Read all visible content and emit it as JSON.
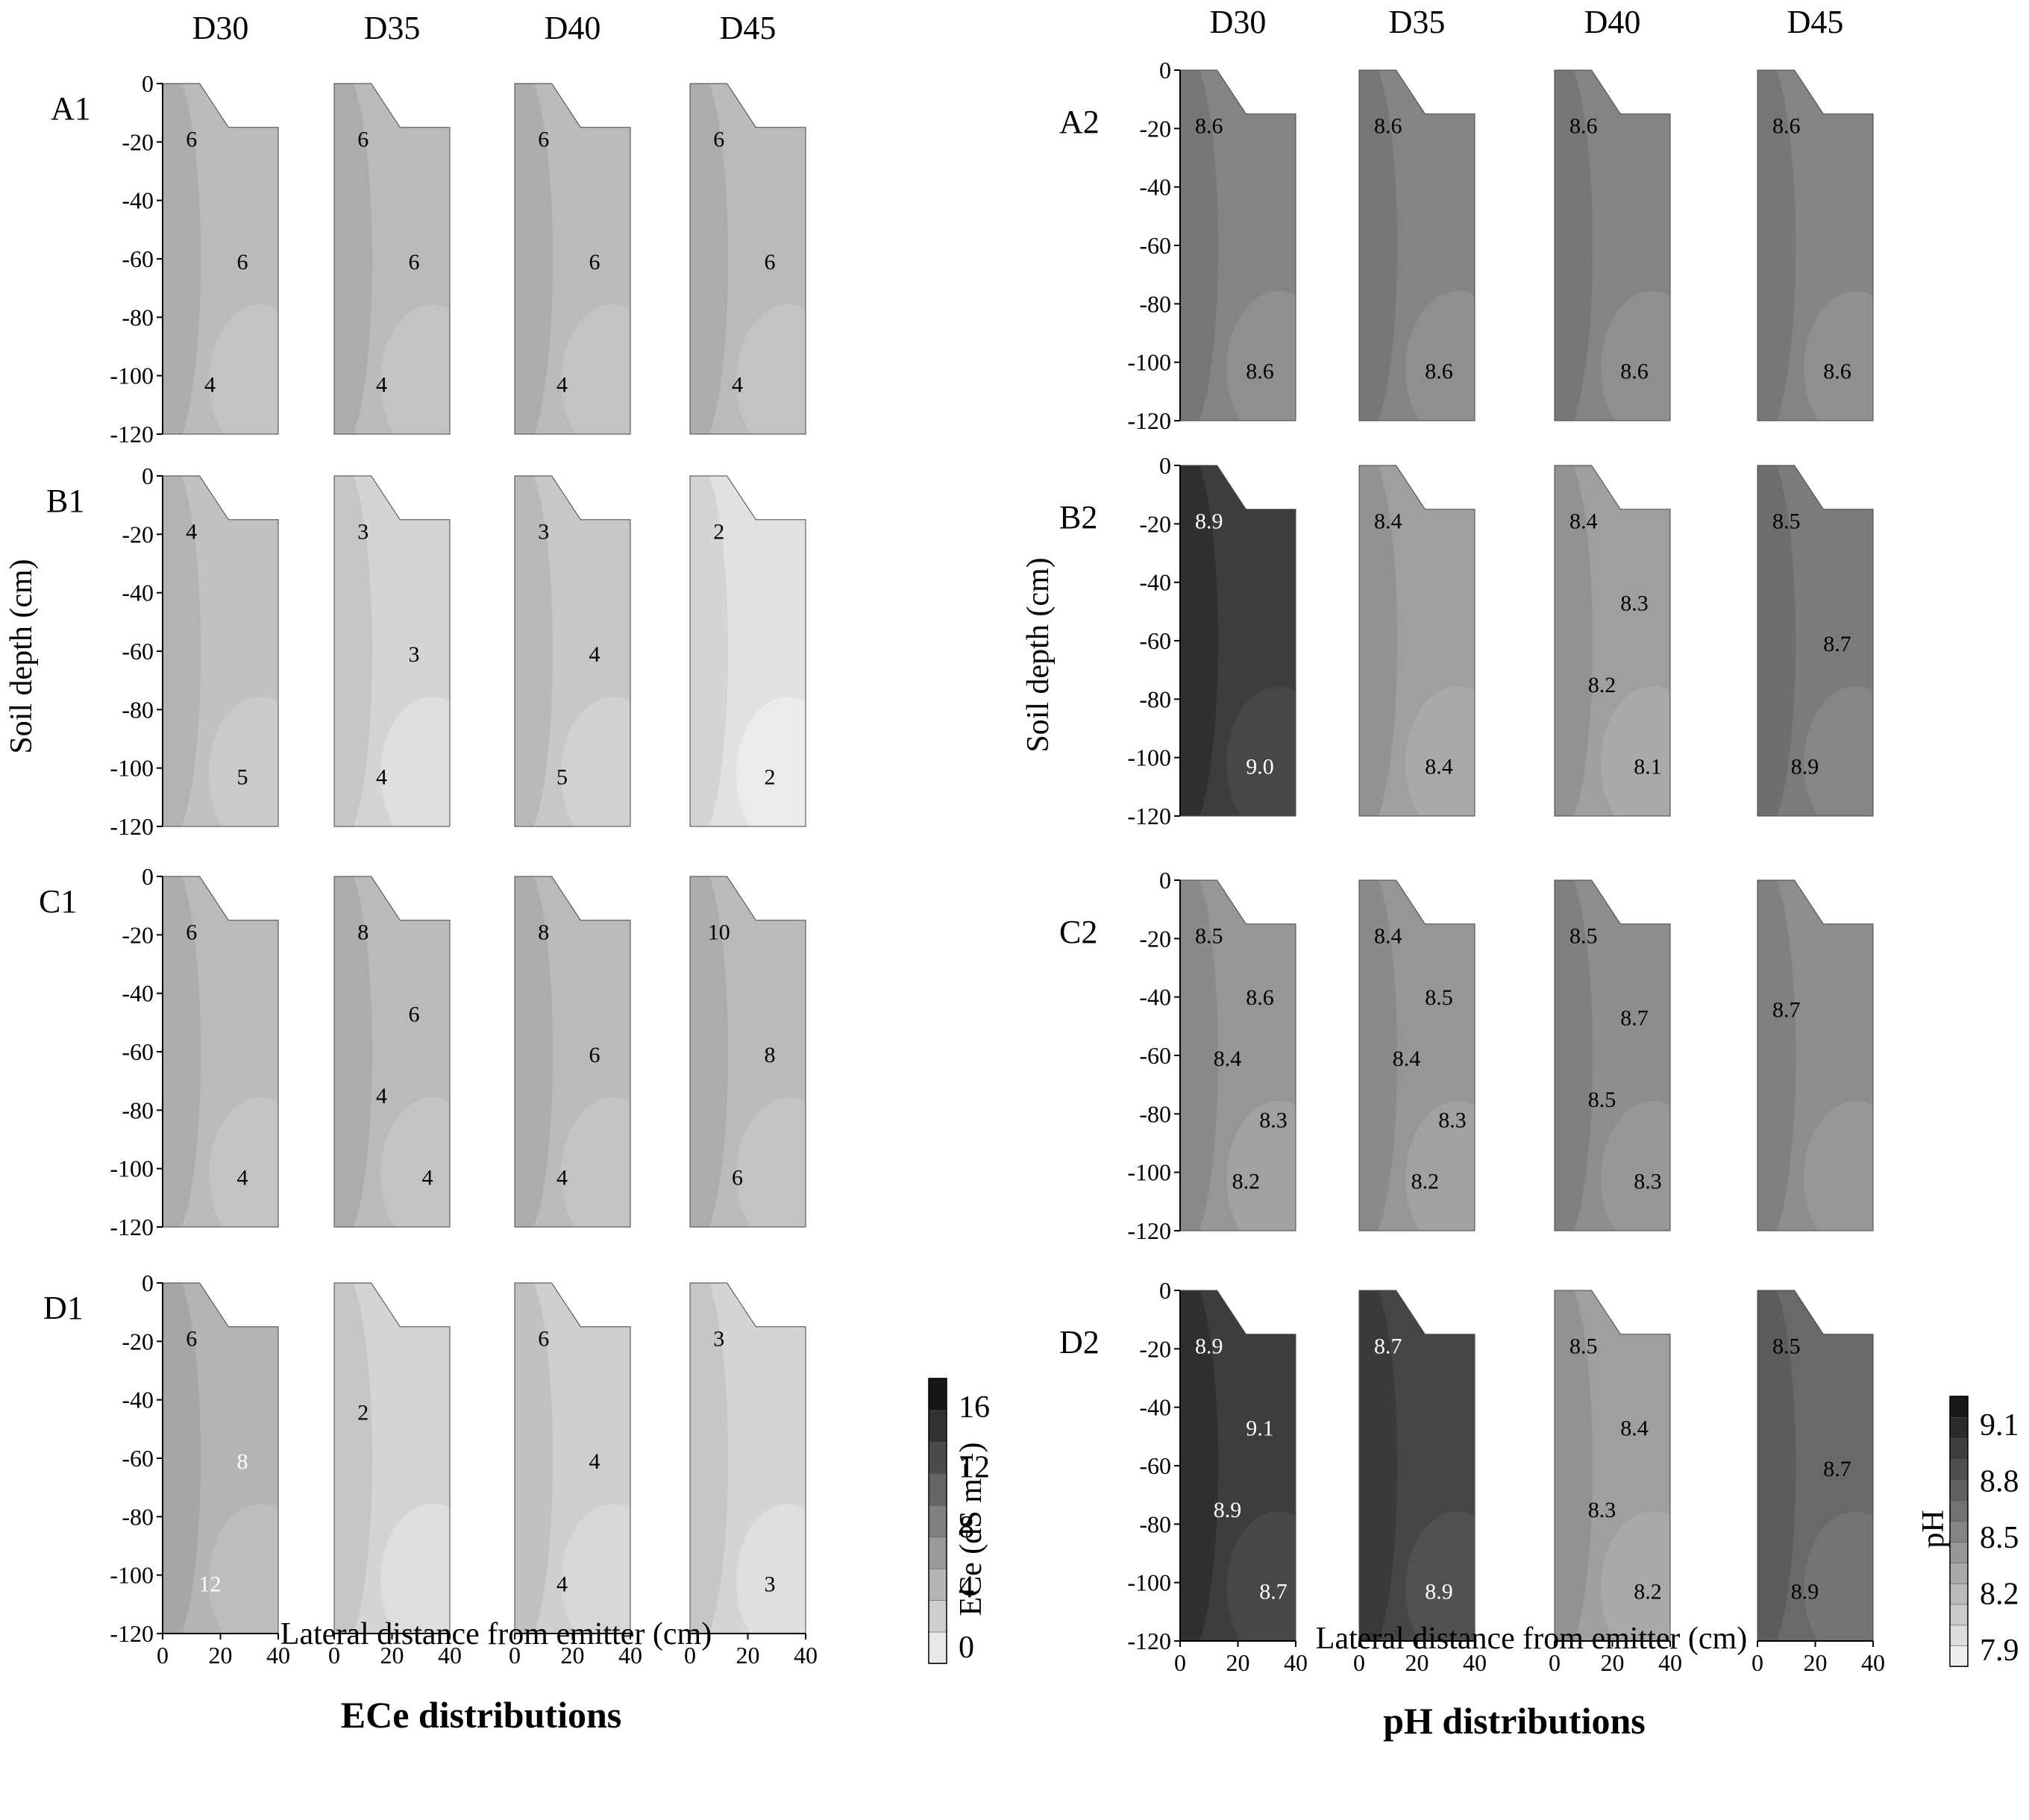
{
  "chart_data": [
    {
      "type": "contour",
      "title": "ECe distributions",
      "xlabel": "Lateral distance from emitter (cm)",
      "ylabel": "Soil depth (cm)",
      "xlim": [
        0,
        40
      ],
      "ylim": [
        -120,
        0
      ],
      "x_ticks": [
        "0",
        "20",
        "40"
      ],
      "y_ticks": [
        "0",
        "-20",
        "-40",
        "-60",
        "-80",
        "-100",
        "-120"
      ],
      "columns": [
        "D30",
        "D35",
        "D40",
        "D45"
      ],
      "rows": [
        "A1",
        "B1",
        "C1",
        "D1"
      ],
      "colorbar": {
        "label": "ECe (dS m⁻¹)",
        "ticks": [
          "16",
          "12",
          "8",
          "4",
          "0"
        ],
        "levels": [
          0,
          2,
          4,
          6,
          8,
          10,
          12,
          14,
          16,
          18
        ]
      },
      "panels": [
        [
          {
            "bg": 4.5,
            "contour_labels": [
              "6",
              "6",
              "4"
            ]
          },
          {
            "bg": 4.5,
            "contour_labels": [
              "6",
              "6",
              "4"
            ]
          },
          {
            "bg": 4.5,
            "contour_labels": [
              "6",
              "6",
              "4"
            ]
          },
          {
            "bg": 4.5,
            "contour_labels": [
              "6",
              "6",
              "4"
            ]
          }
        ],
        [
          {
            "bg": 4.0,
            "contour_labels": [
              "4",
              "5"
            ]
          },
          {
            "bg": 2.5,
            "contour_labels": [
              "3",
              "3",
              "4"
            ]
          },
          {
            "bg": 3.5,
            "contour_labels": [
              "3",
              "4",
              "5"
            ]
          },
          {
            "bg": 1.5,
            "contour_labels": [
              "2",
              "2"
            ]
          }
        ],
        [
          {
            "bg": 4.5,
            "contour_labels": [
              "6",
              "4"
            ]
          },
          {
            "bg": 4.5,
            "contour_labels": [
              "8",
              "6",
              "4",
              "4"
            ]
          },
          {
            "bg": 4.5,
            "contour_labels": [
              "8",
              "6",
              "4"
            ]
          },
          {
            "bg": 4.5,
            "contour_labels": [
              "10",
              "8",
              "6"
            ]
          }
        ],
        [
          {
            "bg": 5.0,
            "contour_labels": [
              "6",
              "8",
              "12"
            ]
          },
          {
            "bg": 2.5,
            "contour_labels": [
              "2"
            ]
          },
          {
            "bg": 3.0,
            "contour_labels": [
              "6",
              "4",
              "4"
            ]
          },
          {
            "bg": 2.5,
            "contour_labels": [
              "3",
              "3"
            ]
          }
        ]
      ]
    },
    {
      "type": "contour",
      "title": "pH distributions",
      "xlabel": "Lateral distance from emitter (cm)",
      "ylabel": "Soil depth (cm)",
      "xlim": [
        0,
        40
      ],
      "ylim": [
        -120,
        0
      ],
      "x_ticks": [
        "0",
        "20",
        "40"
      ],
      "y_ticks": [
        "0",
        "-20",
        "-40",
        "-60",
        "-80",
        "-100",
        "-120"
      ],
      "columns": [
        "D30",
        "D35",
        "D40",
        "D45"
      ],
      "rows": [
        "A2",
        "B2",
        "C2",
        "D2"
      ],
      "colorbar": {
        "label": "pH",
        "ticks": [
          "9.1",
          "8.8",
          "8.5",
          "8.2",
          "7.9"
        ],
        "levels": [
          7.9,
          8.0,
          8.1,
          8.2,
          8.3,
          8.4,
          8.5,
          8.6,
          8.7,
          8.8,
          8.9,
          9.0,
          9.1,
          9.2
        ]
      },
      "panels": [
        [
          {
            "bg": 8.55,
            "contour_labels": [
              "8.6",
              "8.6"
            ]
          },
          {
            "bg": 8.55,
            "contour_labels": [
              "8.6",
              "8.6"
            ]
          },
          {
            "bg": 8.55,
            "contour_labels": [
              "8.6",
              "8.6"
            ]
          },
          {
            "bg": 8.55,
            "contour_labels": [
              "8.6",
              "8.6"
            ]
          }
        ],
        [
          {
            "bg": 8.95,
            "contour_labels": [
              "8.9",
              "9.0"
            ]
          },
          {
            "bg": 8.4,
            "contour_labels": [
              "8.4",
              "8.4"
            ]
          },
          {
            "bg": 8.4,
            "contour_labels": [
              "8.4",
              "8.3",
              "8.2",
              "8.1"
            ]
          },
          {
            "bg": 8.6,
            "contour_labels": [
              "8.5",
              "8.7",
              "8.9"
            ]
          }
        ],
        [
          {
            "bg": 8.45,
            "contour_labels": [
              "8.5",
              "8.6",
              "8.4",
              "8.3",
              "8.2"
            ]
          },
          {
            "bg": 8.45,
            "contour_labels": [
              "8.4",
              "8.5",
              "8.4",
              "8.3",
              "8.2"
            ]
          },
          {
            "bg": 8.5,
            "contour_labels": [
              "8.5",
              "8.7",
              "8.5",
              "8.3"
            ]
          },
          {
            "bg": 8.5,
            "contour_labels": [
              "8.7"
            ]
          }
        ],
        [
          {
            "bg": 8.95,
            "contour_labels": [
              "8.9",
              "9.1",
              "8.9",
              "8.7"
            ]
          },
          {
            "bg": 8.9,
            "contour_labels": [
              "8.7",
              "8.9"
            ]
          },
          {
            "bg": 8.4,
            "contour_labels": [
              "8.5",
              "8.4",
              "8.3",
              "8.2"
            ]
          },
          {
            "bg": 8.7,
            "contour_labels": [
              "8.5",
              "8.7",
              "8.9"
            ]
          }
        ]
      ]
    }
  ]
}
